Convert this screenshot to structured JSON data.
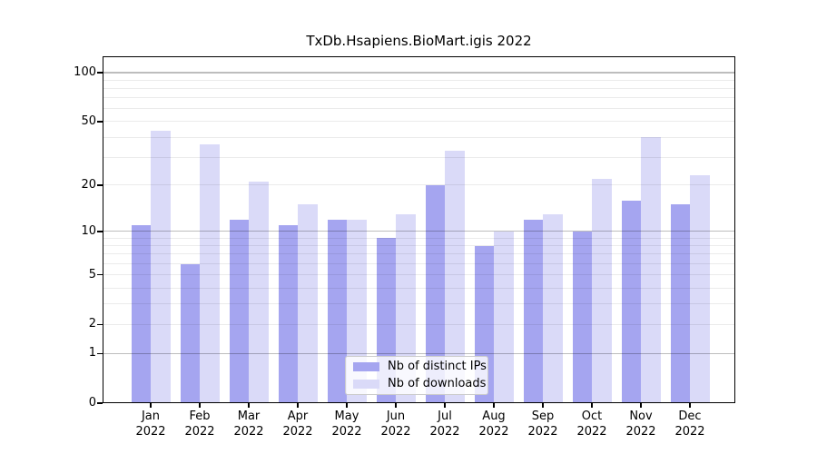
{
  "figure": {
    "background": "#ffffff"
  },
  "chart_data": {
    "type": "bar",
    "title": "TxDb.Hsapiens.BioMart.igis 2022",
    "categories": [
      "Jan 2022",
      "Feb 2022",
      "Mar 2022",
      "Apr 2022",
      "May 2022",
      "Jun 2022",
      "Jul 2022",
      "Aug 2022",
      "Sep 2022",
      "Oct 2022",
      "Nov 2022",
      "Dec 2022"
    ],
    "series": [
      {
        "name": "Nb of distinct IPs",
        "color": "#a5a5f0",
        "values": [
          11,
          6,
          12,
          11,
          12,
          9,
          20,
          8,
          12,
          10,
          16,
          15
        ]
      },
      {
        "name": "Nb of downloads",
        "color": "#dadaf8",
        "values": [
          44,
          36,
          21,
          15,
          12,
          13,
          33,
          10,
          13,
          22,
          40,
          23
        ]
      }
    ],
    "xlabel": "",
    "ylabel": "",
    "yscale": "log1p",
    "ylim": [
      0,
      126
    ],
    "ytick_values": [
      0,
      1,
      2,
      5,
      10,
      20,
      50,
      100
    ],
    "ytick_labels": [
      "0",
      "1",
      "2",
      "5",
      "10",
      "20",
      "50",
      "100"
    ],
    "major_gridlines": [
      1,
      10,
      100
    ],
    "minor_gridlines": [
      2,
      3,
      4,
      5,
      6,
      7,
      8,
      9,
      20,
      30,
      40,
      50,
      60,
      70,
      80,
      90
    ],
    "grid": "horizontal",
    "legend_position": "lower center",
    "colors": {
      "axis": "#000000",
      "major_grid": "#c3c3c3",
      "minor_grid": "#ebebeb",
      "legend_border": "#cccccc",
      "legend_background": "#ffffff"
    }
  }
}
